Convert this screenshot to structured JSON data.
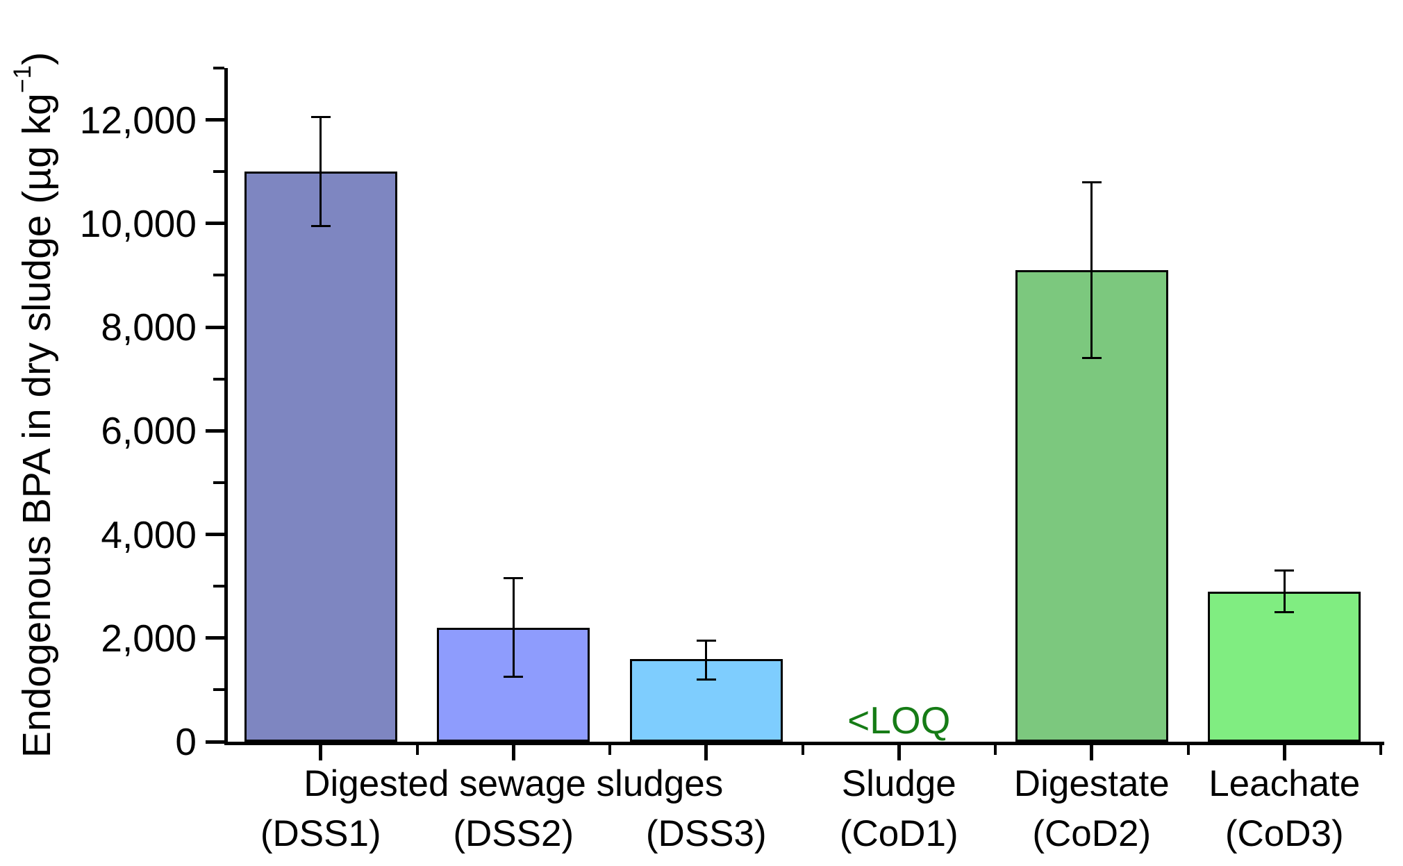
{
  "figure": {
    "background": "#ffffff",
    "text_color": "#000000"
  },
  "y_axis_title": {
    "main": "Endogenous BPA in dry sludge (µg kg",
    "superscript": "−1",
    "close": ")"
  },
  "chart_data": {
    "type": "bar",
    "title": "",
    "xlabel": "",
    "ylabel": "Endogenous BPA in dry sludge (µg kg⁻¹)",
    "ylim": [
      0,
      13000
    ],
    "grid": false,
    "legend": false,
    "y_major_ticks": [
      {
        "value": 0,
        "label": "0"
      },
      {
        "value": 2000,
        "label": "2,000"
      },
      {
        "value": 4000,
        "label": "4,000"
      },
      {
        "value": 6000,
        "label": "6,000"
      },
      {
        "value": 8000,
        "label": "8,000"
      },
      {
        "value": 10000,
        "label": "10,000"
      },
      {
        "value": 12000,
        "label": "12,000"
      }
    ],
    "y_minor_ticks": [
      1000,
      3000,
      5000,
      7000,
      9000,
      11000,
      13000
    ],
    "group_label": {
      "text": "Digested sewage sludges",
      "span_slots": [
        0,
        2
      ]
    },
    "bars": [
      {
        "label_line1": "",
        "label_line2": "(DSS1)",
        "value": 11000,
        "error_plus": 1050,
        "error_minus": 1050,
        "color": "#7E86C1"
      },
      {
        "label_line1": "",
        "label_line2": "(DSS2)",
        "value": 2200,
        "error_plus": 950,
        "error_minus": 950,
        "color": "#8E9CFD"
      },
      {
        "label_line1": "",
        "label_line2": "(DSS3)",
        "value": 1600,
        "error_plus": 350,
        "error_minus": 400,
        "color": "#7ECDFE"
      },
      {
        "label_line1": "Sludge",
        "label_line2": "(CoD1)",
        "value": null,
        "annotation": "<LOQ",
        "annotation_color": "#167C16"
      },
      {
        "label_line1": "Digestate",
        "label_line2": "(CoD2)",
        "value": 9100,
        "error_plus": 1700,
        "error_minus": 1700,
        "color": "#7CC87E"
      },
      {
        "label_line1": "Leachate",
        "label_line2": "(CoD3)",
        "value": 2900,
        "error_plus": 400,
        "error_minus": 400,
        "color": "#80ED81"
      }
    ]
  }
}
